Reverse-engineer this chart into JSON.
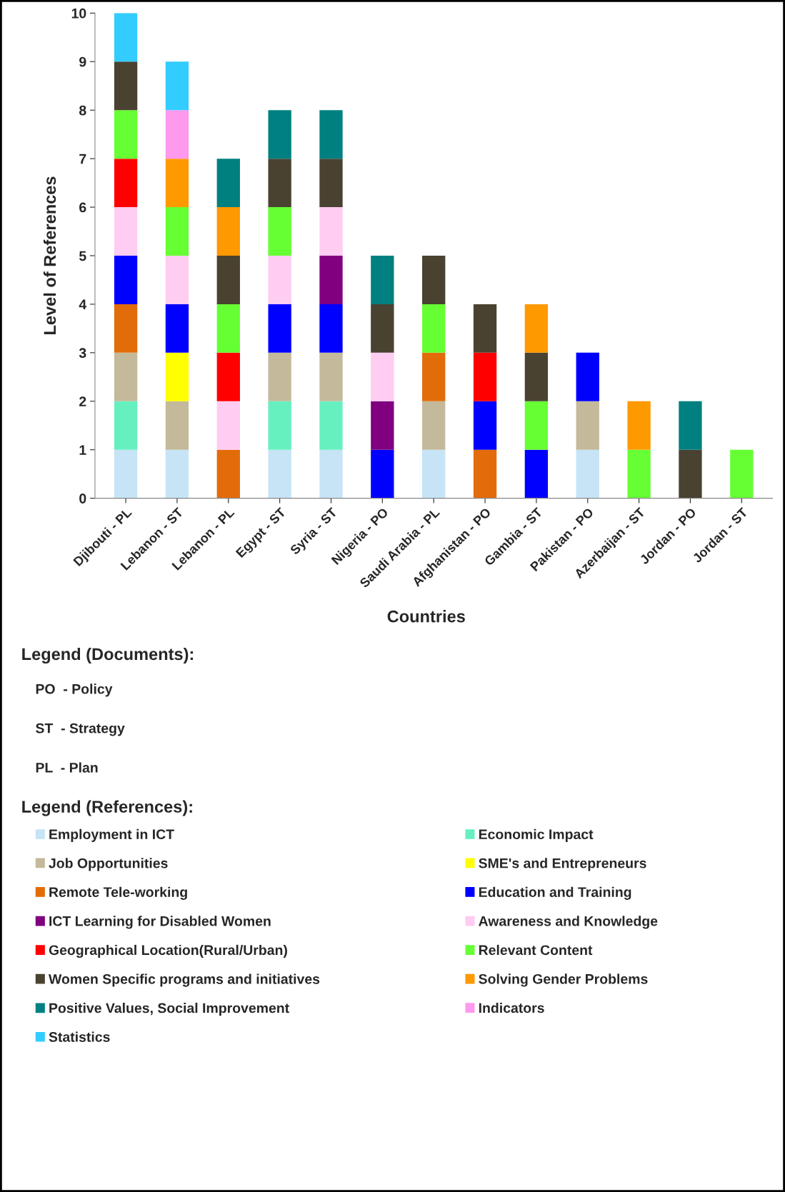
{
  "chart_data": {
    "type": "bar",
    "stacked": true,
    "xlabel": "Countries",
    "ylabel": "Level of References",
    "categories": [
      "Djibouti - PL",
      "Lebanon - ST",
      "Lebanon - PL",
      "Egypt - ST",
      "Syria - ST",
      "Nigeria - PO",
      "Saudi Arabia - PL",
      "Afghanistan - PO",
      "Gambia - ST",
      "Pakistan - PO",
      "Azerbaijan - ST",
      "Jordan - PO",
      "Jordan - ST"
    ],
    "ylim": [
      0,
      10
    ],
    "yticks": [
      0,
      1,
      2,
      3,
      4,
      5,
      6,
      7,
      8,
      9,
      10
    ],
    "grid": false,
    "legend": "bottom",
    "annotations": [
      "Legend (Documents):",
      "PO  - Policy",
      "ST  - Strategy",
      "PL  - Plan",
      "Legend (References):"
    ],
    "series": [
      {
        "name": "Employment in ICT",
        "color": "#c6e4f6",
        "values": [
          1,
          1,
          null,
          1,
          1,
          null,
          1,
          null,
          null,
          1,
          null,
          null,
          null
        ]
      },
      {
        "name": "Economic Impact",
        "color": "#66f0c0",
        "values": [
          1,
          null,
          null,
          1,
          1,
          null,
          null,
          null,
          null,
          null,
          null,
          null,
          null
        ]
      },
      {
        "name": "Job Opportunities",
        "color": "#c4b99a",
        "values": [
          1,
          1,
          null,
          1,
          1,
          null,
          1,
          null,
          null,
          1,
          null,
          null,
          null
        ]
      },
      {
        "name": "SME's and Entrepreneurs",
        "color": "#ffff00",
        "values": [
          null,
          1,
          null,
          null,
          null,
          null,
          null,
          null,
          null,
          null,
          null,
          null,
          null
        ]
      },
      {
        "name": "Remote Tele-working",
        "color": "#e36c0a",
        "values": [
          1,
          null,
          1,
          null,
          null,
          null,
          1,
          1,
          null,
          null,
          null,
          null,
          null
        ]
      },
      {
        "name": "Education and Training",
        "color": "#0000ff",
        "values": [
          1,
          1,
          null,
          1,
          1,
          1,
          null,
          1,
          1,
          1,
          null,
          null,
          null
        ]
      },
      {
        "name": "ICT Learning for Disabled Women",
        "color": "#800080",
        "values": [
          null,
          null,
          null,
          null,
          1,
          1,
          null,
          null,
          null,
          null,
          null,
          null,
          null
        ]
      },
      {
        "name": "Awareness and Knowledge",
        "color": "#ffccf2",
        "values": [
          1,
          1,
          1,
          1,
          1,
          1,
          null,
          null,
          null,
          null,
          null,
          null,
          null
        ]
      },
      {
        "name": "Geographical Location(Rural/Urban)",
        "color": "#ff0000",
        "values": [
          1,
          null,
          1,
          null,
          null,
          null,
          null,
          1,
          null,
          null,
          null,
          null,
          null
        ]
      },
      {
        "name": "Relevant Content",
        "color": "#66ff33",
        "values": [
          1,
          1,
          1,
          1,
          null,
          null,
          1,
          null,
          1,
          null,
          1,
          null,
          1
        ]
      },
      {
        "name": "Women Specific programs and initiatives",
        "color": "#4a4230",
        "values": [
          1,
          null,
          1,
          1,
          1,
          1,
          1,
          1,
          1,
          null,
          null,
          1,
          null
        ]
      },
      {
        "name": "Solving Gender Problems",
        "color": "#ff9900",
        "values": [
          null,
          1,
          1,
          null,
          null,
          null,
          null,
          null,
          1,
          null,
          1,
          null,
          null
        ]
      },
      {
        "name": "Positive Values, Social Improvement",
        "color": "#008080",
        "values": [
          null,
          null,
          1,
          1,
          1,
          1,
          null,
          null,
          null,
          null,
          null,
          1,
          null
        ]
      },
      {
        "name": "Indicators",
        "color": "#ff99ee",
        "values": [
          null,
          1,
          null,
          null,
          null,
          null,
          null,
          null,
          null,
          null,
          null,
          null,
          null
        ]
      },
      {
        "name": "Statistics",
        "color": "#33ccff",
        "values": [
          1,
          1,
          null,
          null,
          null,
          null,
          null,
          null,
          null,
          null,
          null,
          null,
          null
        ]
      }
    ]
  }
}
